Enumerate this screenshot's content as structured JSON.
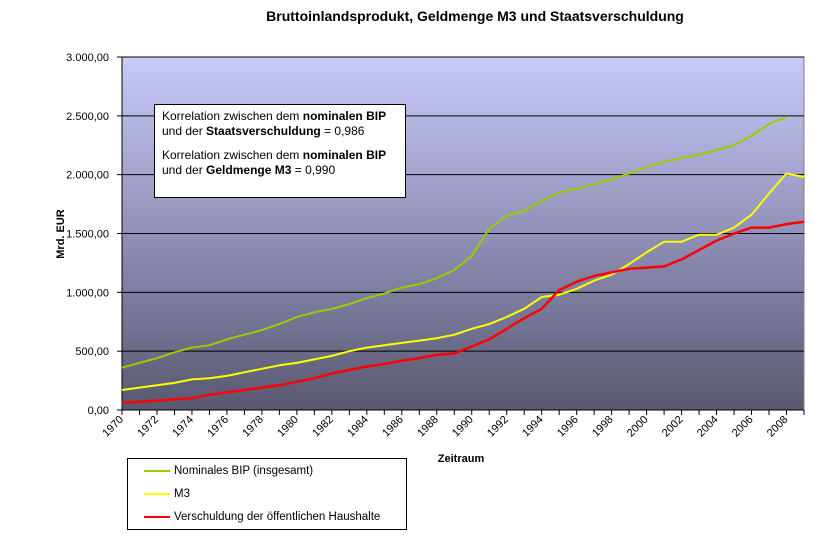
{
  "chart_data": {
    "type": "line",
    "title": "Bruttoinlandsprodukt, Geldmenge M3 und Staatsverschuldung",
    "xlabel": "Zeitraum",
    "ylabel": "Mrd. EUR",
    "ylim": [
      0,
      3000
    ],
    "xlim": [
      1970,
      2009
    ],
    "grid": true,
    "legend_position": "bottom-left",
    "y_ticks": [
      "0,00",
      "500,00",
      "1.000,00",
      "1.500,00",
      "2.000,00",
      "2.500,00",
      "3.000,00"
    ],
    "x_ticks": [
      "1970",
      "1972",
      "1974",
      "1976",
      "1978",
      "1980",
      "1982",
      "1984",
      "1986",
      "1988",
      "1990",
      "1992",
      "1994",
      "1996",
      "1998",
      "2000",
      "2002",
      "2004",
      "2006",
      "2008"
    ],
    "x": [
      1970,
      1971,
      1972,
      1973,
      1974,
      1975,
      1976,
      1977,
      1978,
      1979,
      1980,
      1981,
      1982,
      1983,
      1984,
      1985,
      1986,
      1987,
      1988,
      1989,
      1990,
      1991,
      1992,
      1993,
      1994,
      1995,
      1996,
      1997,
      1998,
      1999,
      2000,
      2001,
      2002,
      2003,
      2004,
      2005,
      2006,
      2007,
      2008,
      2009
    ],
    "series": [
      {
        "name": "Nominales BIP (insgesamt)",
        "color": "#99cc00",
        "values": [
          360,
          400,
          440,
          490,
          530,
          550,
          600,
          640,
          680,
          730,
          790,
          830,
          860,
          900,
          950,
          990,
          1040,
          1070,
          1120,
          1190,
          1310,
          1540,
          1650,
          1690,
          1780,
          1850,
          1880,
          1920,
          1960,
          2010,
          2060,
          2110,
          2140,
          2170,
          2210,
          2250,
          2330,
          2430,
          2490,
          null
        ]
      },
      {
        "name": "M3",
        "color": "#ffff00",
        "values": [
          170,
          190,
          210,
          230,
          260,
          270,
          290,
          320,
          350,
          380,
          400,
          430,
          460,
          500,
          530,
          550,
          570,
          590,
          610,
          640,
          690,
          730,
          790,
          860,
          960,
          980,
          1030,
          1100,
          1150,
          1240,
          1340,
          1430,
          1430,
          1490,
          1490,
          1550,
          1660,
          1840,
          2010,
          1980
        ]
      },
      {
        "name": "Verschuldung der öffentlichen Haushalte",
        "color": "#ff0000",
        "values": [
          60,
          70,
          80,
          90,
          100,
          130,
          150,
          170,
          190,
          210,
          240,
          270,
          310,
          340,
          370,
          390,
          420,
          440,
          470,
          480,
          540,
          600,
          690,
          780,
          860,
          1020,
          1090,
          1140,
          1170,
          1200,
          1210,
          1220,
          1280,
          1360,
          1440,
          1500,
          1550,
          1550,
          1580,
          1600
        ]
      }
    ],
    "annotations": {
      "line1a": "Korrelation zwischen dem ",
      "line1b": "nominalen BIP",
      "line2a": "und der ",
      "line2b": "Staatsverschuldung",
      "line2c": " = 0,986",
      "line3a": "Korrelation zwischen dem ",
      "line3b": "nominalen BIP",
      "line4a": "und der ",
      "line4b": "Geldmenge M3",
      "line4c": " = 0,990"
    }
  }
}
